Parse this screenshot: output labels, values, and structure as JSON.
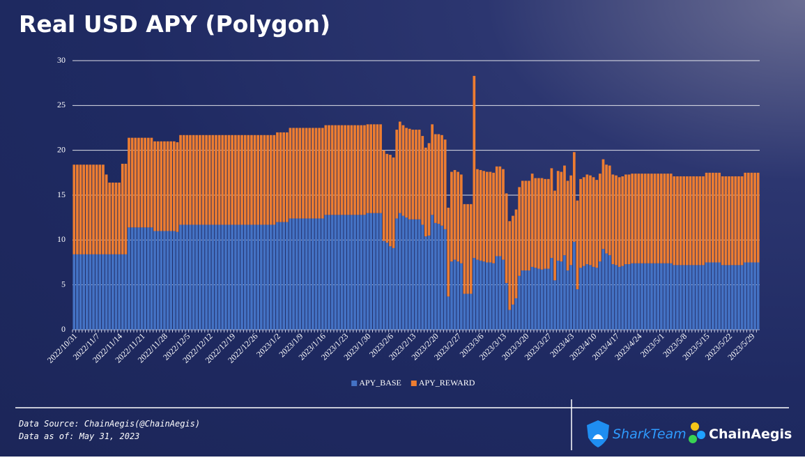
{
  "chart_data": {
    "type": "bar",
    "stacked": true,
    "title": "Real USD APY (Polygon)",
    "categories": [
      "2022/10/31",
      null,
      null,
      null,
      null,
      null,
      null,
      "2022/11/7",
      null,
      null,
      null,
      null,
      null,
      null,
      "2022/11/14",
      null,
      null,
      null,
      null,
      null,
      null,
      "2022/11/21",
      null,
      null,
      null,
      null,
      null,
      null,
      "2022/11/28",
      null,
      null,
      null,
      null,
      null,
      null,
      "2022/12/5",
      null,
      null,
      null,
      null,
      null,
      null,
      "2022/12/12",
      null,
      null,
      null,
      null,
      null,
      null,
      "2022/12/19",
      null,
      null,
      null,
      null,
      null,
      null,
      "2022/12/26",
      null,
      null,
      null,
      null,
      null,
      null,
      "2023/1/2",
      null,
      null,
      null,
      null,
      null,
      null,
      "2023/1/9",
      null,
      null,
      null,
      null,
      null,
      null,
      "2023/1/16",
      null,
      null,
      null,
      null,
      null,
      null,
      "2023/1/23",
      null,
      null,
      null,
      null,
      null,
      null,
      "2023/1/30",
      null,
      null,
      null,
      null,
      null,
      null,
      "2023/2/6",
      null,
      null,
      null,
      null,
      null,
      null,
      "2023/2/13",
      null,
      null,
      null,
      null,
      null,
      null,
      "2023/2/20",
      null,
      null,
      null,
      null,
      null,
      null,
      "2023/2/27",
      null,
      null,
      null,
      null,
      null,
      null,
      "2023/3/6",
      null,
      null,
      null,
      null,
      null,
      null,
      "2023/3/13",
      null,
      null,
      null,
      null,
      null,
      null,
      "2023/3/20",
      null,
      null,
      null,
      null,
      null,
      null,
      "2023/3/27",
      null,
      null,
      null,
      null,
      null,
      null,
      "2023/4/3",
      null,
      null,
      null,
      null,
      null,
      null,
      "2023/4/10",
      null,
      null,
      null,
      null,
      null,
      null,
      "2023/4/17",
      null,
      null,
      null,
      null,
      null,
      null,
      "2023/4/24",
      null,
      null,
      null,
      null,
      null,
      null,
      "2023/5/1",
      null,
      null,
      null,
      null,
      null,
      null,
      "2023/5/8",
      null,
      null,
      null,
      null,
      null,
      null,
      "2023/5/15",
      null,
      null,
      null,
      null,
      null,
      null,
      "2023/5/22",
      null,
      null,
      null,
      null,
      null,
      null,
      "2023/5/29",
      null,
      null
    ],
    "series": [
      {
        "name": "APY_BASE",
        "color": "#4472c4",
        "values": [
          8.4,
          8.4,
          8.4,
          8.4,
          8.4,
          8.4,
          8.4,
          8.4,
          8.4,
          8.4,
          8.4,
          8.4,
          8.4,
          8.4,
          8.4,
          8.4,
          8.4,
          11.4,
          11.4,
          11.4,
          11.4,
          11.4,
          11.4,
          11.4,
          11.4,
          11,
          11,
          11,
          11,
          11,
          11,
          11,
          10.9,
          11.7,
          11.7,
          11.7,
          11.7,
          11.7,
          11.7,
          11.7,
          11.7,
          11.7,
          11.7,
          11.7,
          11.7,
          11.7,
          11.7,
          11.7,
          11.7,
          11.7,
          11.7,
          11.7,
          11.7,
          11.7,
          11.7,
          11.7,
          11.7,
          11.7,
          11.7,
          11.7,
          11.7,
          11.7,
          11.7,
          12,
          12,
          12,
          12,
          12.4,
          12.4,
          12.4,
          12.4,
          12.4,
          12.4,
          12.4,
          12.4,
          12.4,
          12.4,
          12.4,
          12.8,
          12.8,
          12.8,
          12.8,
          12.8,
          12.8,
          12.8,
          12.8,
          12.8,
          12.8,
          12.8,
          12.8,
          12.8,
          13,
          13,
          13,
          13,
          13,
          9.9,
          9.7,
          9.3,
          9.1,
          12.4,
          13,
          12.7,
          12.5,
          12.3,
          12.3,
          12.3,
          12.3,
          11.7,
          10.4,
          10.5,
          12.8,
          11.9,
          11.8,
          11.6,
          11.2,
          3.7,
          7.6,
          7.8,
          7.6,
          7.4,
          4,
          4,
          4,
          8,
          7.8,
          7.7,
          7.6,
          7.5,
          7.5,
          7.4,
          8.2,
          8.2,
          7.8,
          5.2,
          2.2,
          2.8,
          3.5,
          6,
          6.6,
          6.6,
          6.6,
          7,
          6.9,
          6.8,
          6.7,
          6.8,
          6.8,
          8,
          5.5,
          7.7,
          7.6,
          8.3,
          6.6,
          7.2,
          9.8,
          4.5,
          6.9,
          7.1,
          7.3,
          7.2,
          7,
          6.9,
          7.6,
          9,
          8.5,
          8.3,
          7.3,
          7.2,
          7,
          7.1,
          7.3,
          7.3,
          7.4,
          7.4,
          7.4,
          7.4,
          7.4,
          7.4,
          7.4,
          7.4,
          7.4,
          7.4,
          7.4,
          7.4,
          7.4,
          7.2,
          7.2,
          7.2,
          7.2,
          7.2,
          7.2,
          7.2,
          7.2,
          7.2,
          7.2,
          7.5,
          7.5,
          7.5,
          7.5,
          7.5,
          7.2,
          7.2,
          7.2,
          7.2,
          7.2,
          7.2,
          7.2,
          7.5,
          7.5,
          7.5,
          7.5,
          7.5
        ]
      },
      {
        "name": "APY_REWARD",
        "color": "#ed7d31",
        "values": [
          10,
          10,
          10,
          10,
          10,
          10,
          10,
          10,
          10,
          10,
          8.9,
          8,
          8,
          8,
          8,
          10.1,
          10.1,
          10,
          10,
          10,
          10,
          10,
          10,
          10,
          10,
          10,
          10,
          10,
          10,
          10,
          10,
          10,
          10,
          10,
          10,
          10,
          10,
          10,
          10,
          10,
          10,
          10,
          10,
          10,
          10,
          10,
          10,
          10,
          10,
          10,
          10,
          10,
          10,
          10,
          10,
          10,
          10,
          10,
          10,
          10,
          10,
          10,
          10,
          10,
          10,
          10,
          10,
          10.1,
          10.1,
          10.1,
          10.1,
          10.1,
          10.1,
          10.1,
          10.1,
          10.1,
          10.1,
          10.1,
          10,
          10,
          10,
          10,
          10,
          10,
          10,
          10,
          10,
          10,
          10,
          10,
          10,
          9.9,
          9.9,
          9.9,
          9.9,
          9.9,
          10.1,
          9.9,
          10.2,
          10.1,
          9.9,
          10.2,
          10.1,
          10,
          10.1,
          10,
          10,
          10,
          9.9,
          9.9,
          10.3,
          10.1,
          9.9,
          10,
          10.1,
          10,
          9.9,
          10,
          10,
          10,
          9.9,
          10,
          10,
          10,
          20.3,
          10.1,
          10.1,
          10.1,
          10.1,
          10.1,
          10.1,
          10,
          10,
          10.1,
          10,
          9.9,
          9.9,
          9.9,
          9.9,
          10,
          10,
          10,
          10.4,
          10,
          10.1,
          10.2,
          10,
          10,
          10,
          10,
          10,
          10,
          10,
          10,
          10,
          10,
          9.9,
          9.9,
          9.9,
          10,
          10,
          10,
          9.8,
          9.8,
          10,
          9.9,
          10,
          10,
          10,
          10,
          10,
          10,
          10,
          10,
          10,
          10,
          10,
          10,
          10,
          10,
          10,
          10,
          10,
          10,
          10,
          10,
          9.9,
          9.9,
          9.9,
          9.9,
          9.9,
          9.9,
          9.9,
          9.9,
          9.9,
          9.9,
          10,
          10,
          10,
          10,
          10,
          9.9,
          9.9,
          9.9,
          9.9,
          9.9,
          9.9,
          9.9,
          10,
          10,
          10,
          10,
          10
        ]
      }
    ],
    "ylim": [
      0,
      30
    ],
    "yticks": [
      0,
      5,
      10,
      15,
      20,
      25,
      30
    ],
    "grid": true,
    "legend": "bottom"
  },
  "footer": {
    "source": "Data Source: ChainAegis(@ChainAegis)",
    "as_of": "Data as of: May 31, 2023",
    "logos": [
      "SharkTeam",
      "ChainAegis"
    ]
  }
}
